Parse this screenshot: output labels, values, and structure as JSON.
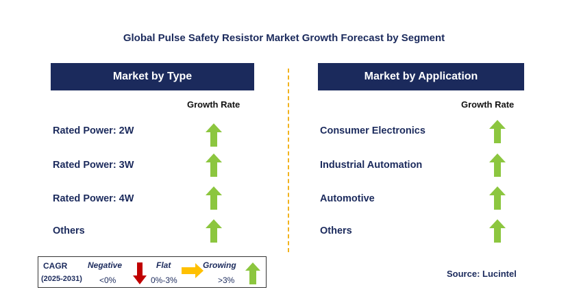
{
  "title": "Global Pulse Safety Resistor Market Growth Forecast by Segment",
  "left_panel": {
    "header": "Market by Type",
    "column_label": "Growth Rate",
    "rows": [
      {
        "label": "Rated Power: 2W",
        "trend": "growing"
      },
      {
        "label": "Rated Power: 3W",
        "trend": "growing"
      },
      {
        "label": "Rated Power: 4W",
        "trend": "growing"
      },
      {
        "label": "Others",
        "trend": "growing"
      }
    ]
  },
  "right_panel": {
    "header": "Market by Application",
    "column_label": "Growth Rate",
    "rows": [
      {
        "label": "Consumer Electronics",
        "trend": "growing"
      },
      {
        "label": "Industrial Automation",
        "trend": "growing"
      },
      {
        "label": "Automotive",
        "trend": "growing"
      },
      {
        "label": "Others",
        "trend": "growing"
      }
    ]
  },
  "legend": {
    "cagr_label": "CAGR",
    "period": "(2025-2031)",
    "negative_label": "Negative",
    "negative_range": "<0%",
    "flat_label": "Flat",
    "flat_range": "0%-3%",
    "growing_label": "Growing",
    "growing_range": ">3%"
  },
  "source": "Source: Lucintel",
  "colors": {
    "navy": "#1b2a5c",
    "growing": "#8cc63f",
    "flat": "#ffc000",
    "negative": "#c00000",
    "divider": "#f2b21c"
  }
}
